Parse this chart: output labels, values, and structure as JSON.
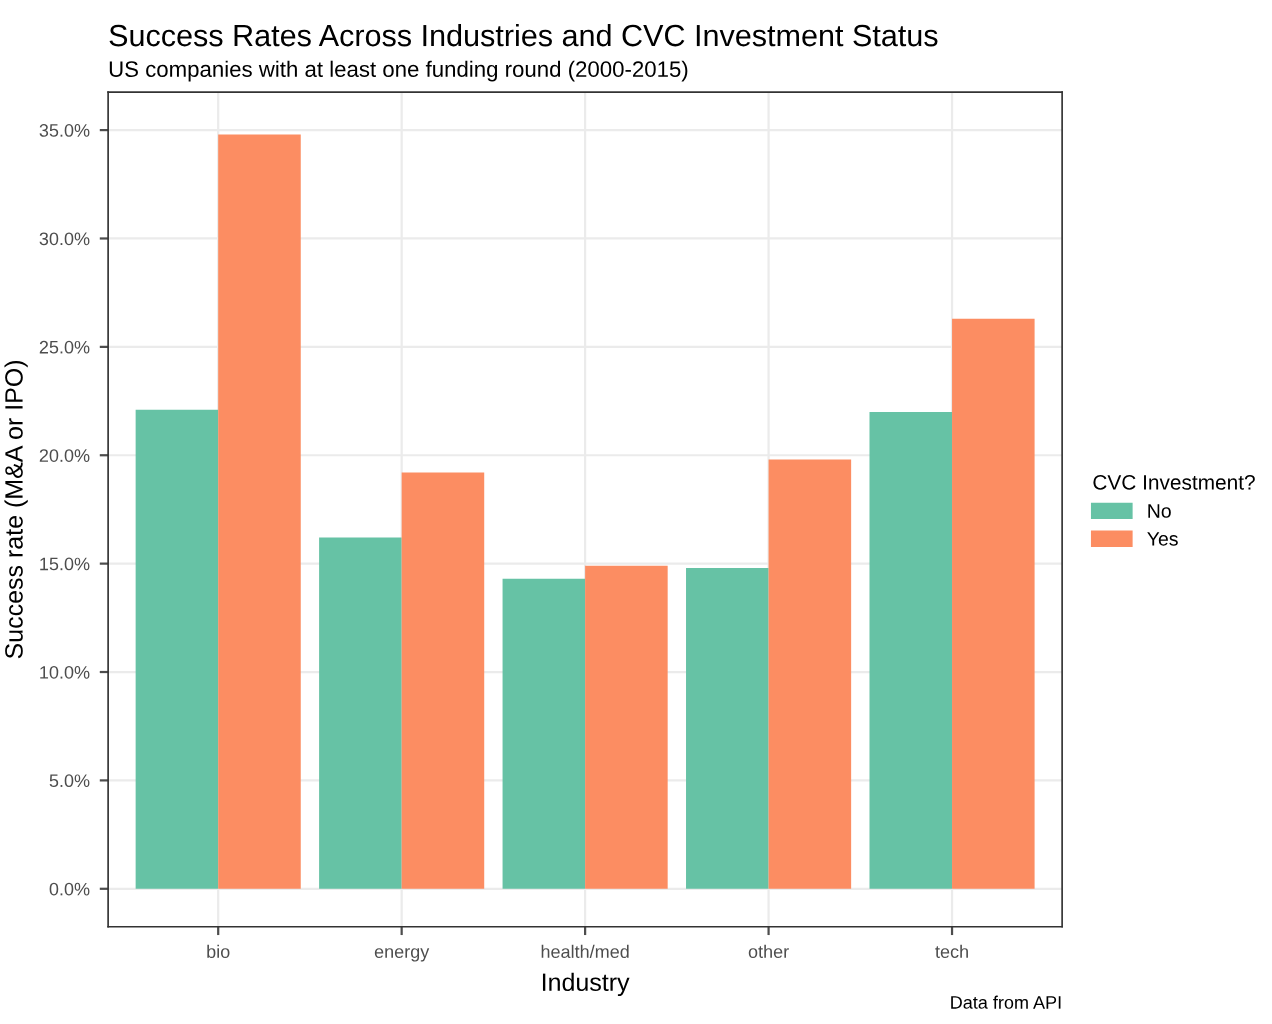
{
  "chart_data": {
    "type": "bar",
    "title": "Success Rates Across Industries and CVC Investment Status",
    "subtitle": "US companies with at least one funding round (2000-2015)",
    "xlabel": "Industry",
    "ylabel": "Success rate (M&A or IPO)",
    "legend_title": "CVC Investment?",
    "annotations": [
      "Data from API"
    ],
    "categories": [
      "bio",
      "energy",
      "health/med",
      "other",
      "tech"
    ],
    "series": [
      {
        "name": "No",
        "color": "#66c2a5",
        "values": [
          0.221,
          0.162,
          0.143,
          0.148,
          0.22
        ]
      },
      {
        "name": "Yes",
        "color": "#fc8d62",
        "values": [
          0.348,
          0.192,
          0.149,
          0.198,
          0.263
        ]
      }
    ],
    "ylim": [
      -0.0175,
      0.3675
    ],
    "yticks": [
      {
        "value": 0,
        "label": "0.0%"
      },
      {
        "value": 0.05,
        "label": "5.0%"
      },
      {
        "value": 0.1,
        "label": "10.0%"
      },
      {
        "value": 0.15,
        "label": "15.0%"
      },
      {
        "value": 0.2,
        "label": "20.0%"
      },
      {
        "value": 0.25,
        "label": "25.0%"
      },
      {
        "value": 0.3,
        "label": "30.0%"
      },
      {
        "value": 0.35,
        "label": "35.0%"
      }
    ],
    "grid": true,
    "legend": "right"
  }
}
